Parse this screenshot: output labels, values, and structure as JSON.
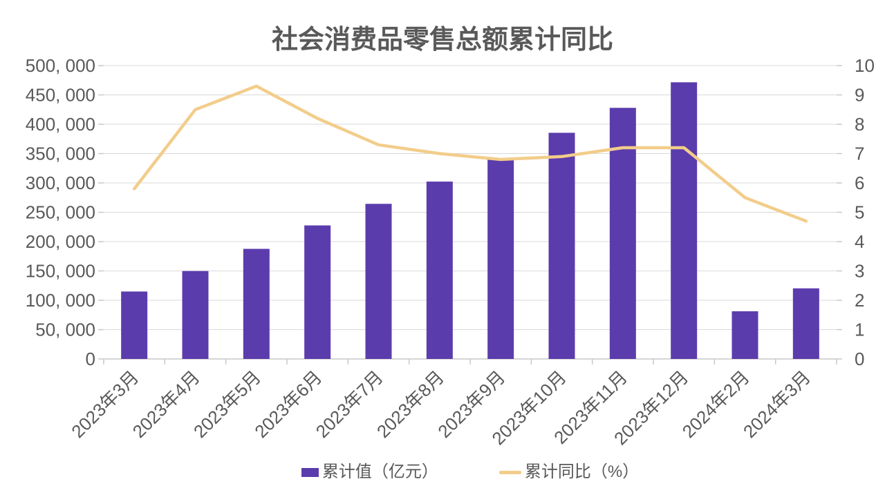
{
  "title": "社会消费品零售总额累计同比",
  "theme": {
    "background": "#FFFFFF",
    "bar_color": "#5B3CAC",
    "line_color": "#F2CD8A",
    "text_color": "#595959",
    "grid_color": "#D9D9D9",
    "axis_color": "#C9C9C9"
  },
  "chart_data": {
    "type": "combo",
    "title": "社会消费品零售总额累计同比",
    "categories": [
      "2023年3月",
      "2023年4月",
      "2023年5月",
      "2023年6月",
      "2023年7月",
      "2023年8月",
      "2023年9月",
      "2023年10月",
      "2023年11月",
      "2023年12月",
      "2024年2月",
      "2024年3月"
    ],
    "series": [
      {
        "name": "累计值（亿元）",
        "type": "bar",
        "axis": "left",
        "color": "#5B3CAC",
        "values": [
          114922,
          149833,
          187636,
          227588,
          264348,
          302281,
          342107,
          385440,
          427945,
          471495,
          81307,
          120327
        ]
      },
      {
        "name": "累计同比（%）",
        "type": "line",
        "axis": "right",
        "color": "#F2CD8A",
        "values": [
          5.8,
          8.5,
          9.3,
          8.2,
          7.3,
          7.0,
          6.8,
          6.9,
          7.2,
          7.2,
          5.5,
          4.7
        ]
      }
    ],
    "left_axis": {
      "min": 0,
      "max": 500000,
      "step": 50000,
      "tick_labels": [
        "0",
        "50, 000",
        "100, 000",
        "150, 000",
        "200, 000",
        "250, 000",
        "300, 000",
        "350, 000",
        "400, 000",
        "450, 000",
        "500, 000"
      ]
    },
    "right_axis": {
      "min": 0,
      "max": 10,
      "step": 1,
      "tick_labels": [
        "0",
        "1",
        "2",
        "3",
        "4",
        "5",
        "6",
        "7",
        "8",
        "9",
        "10"
      ]
    },
    "grid": true,
    "legend_position": "bottom",
    "xlabel": "",
    "ylabel": ""
  }
}
